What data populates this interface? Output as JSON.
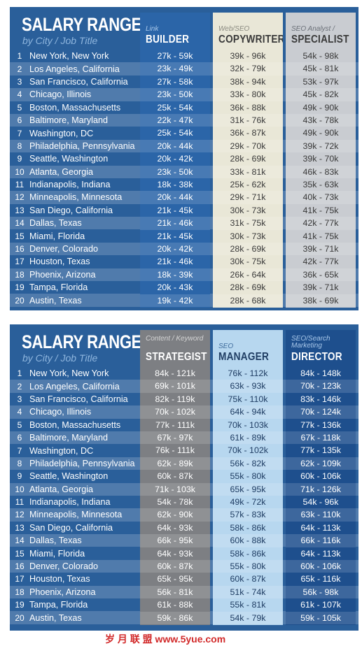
{
  "cities": [
    "New York, New York",
    "Los Angeles, California",
    "San Francisco, California",
    "Chicago, Illinois",
    "Boston, Massachusetts",
    "Baltimore, Maryland",
    "Washington, DC",
    "Philadelphia, Pennsylvania",
    "Seattle, Washington",
    "Atlanta, Georgia",
    "Indianapolis, Indiana",
    "Minneapolis, Minnesota",
    "San Diego, California",
    "Dallas, Texas",
    "Miami, Florida",
    "Denver, Colorado",
    "Houston, Texas",
    "Phoenix, Arizona",
    "Tampa, Florida",
    "Austin, Texas"
  ],
  "panels": [
    {
      "title": "SALARY RANGES",
      "subtitle": "by City / Job Title",
      "columns": [
        {
          "small": "Link",
          "big": "BUILDER",
          "bg": "#2b65a8",
          "text": "#ffffff",
          "smalltext": "#a9c8ea",
          "values": [
            "27k - 59k",
            "23k - 49k",
            "27k - 58k",
            "23k - 50k",
            "25k - 54k",
            "22k - 47k",
            "25k - 54k",
            "20k - 44k",
            "20k - 42k",
            "23k - 50k",
            "18k - 38k",
            "20k - 44k",
            "21k - 45k",
            "21k - 46k",
            "21k - 45k",
            "20k - 42k",
            "21k - 46k",
            "18k - 39k",
            "20k - 43k",
            "19k - 42k"
          ]
        },
        {
          "small": "Web/SEO",
          "big": "COPYWRITER",
          "bg": "#e9e7d7",
          "text": "#3a3a3a",
          "smalltext": "#8a8a80",
          "values": [
            "39k - 96k",
            "32k - 79k",
            "38k - 94k",
            "33k - 80k",
            "36k - 88k",
            "31k - 76k",
            "36k - 87k",
            "29k - 70k",
            "28k - 69k",
            "33k - 81k",
            "25k - 62k",
            "29k - 71k",
            "30k - 73k",
            "31k - 75k",
            "30k - 73k",
            "28k - 69k",
            "30k - 75k",
            "26k - 64k",
            "28k - 69k",
            "28k - 68k"
          ]
        },
        {
          "small": "SEO Analyst /",
          "big": "SPECIALIST",
          "bg": "#c9ccd1",
          "text": "#3a3a3a",
          "smalltext": "#6b7078",
          "values": [
            "54k - 98k",
            "45k - 81k",
            "53k - 97k",
            "45k - 82k",
            "49k - 90k",
            "43k - 78k",
            "49k - 90k",
            "39k - 72k",
            "39k - 70k",
            "46k - 83k",
            "35k - 63k",
            "40k - 73k",
            "41k - 75k",
            "42k - 77k",
            "41k - 75k",
            "39k - 71k",
            "42k - 77k",
            "36k - 65k",
            "39k - 71k",
            "38k - 69k"
          ]
        }
      ]
    },
    {
      "title": "SALARY RANGES",
      "subtitle": "by City / Job Title",
      "columns": [
        {
          "small": "Content / Keyword",
          "big": "STRATEGIST",
          "bg": "#7d7f83",
          "text": "#ffffff",
          "smalltext": "#d6d6d6",
          "values": [
            "84k - 121k",
            "69k - 101k",
            "82k - 119k",
            "70k - 102k",
            "77k - 111k",
            "67k - 97k",
            "76k - 111k",
            "62k - 89k",
            "60k - 87k",
            "71k - 103k",
            "54k - 78k",
            "62k - 90k",
            "64k - 93k",
            "66k - 95k",
            "64k - 93k",
            "60k - 87k",
            "65k - 95k",
            "56k - 81k",
            "61k - 88k",
            "59k - 86k"
          ]
        },
        {
          "small": "SEO",
          "big": "MANAGER",
          "bg": "#b7d7ef",
          "text": "#1f3d63",
          "smalltext": "#3f6c9c",
          "values": [
            "76k - 112k",
            "63k - 93k",
            "75k - 110k",
            "64k - 94k",
            "70k - 103k",
            "61k - 89k",
            "70k - 102k",
            "56k - 82k",
            "55k - 80k",
            "65k - 95k",
            "49k - 72k",
            "57k - 83k",
            "58k - 86k",
            "60k - 88k",
            "58k - 86k",
            "55k - 80k",
            "60k - 87k",
            "51k - 74k",
            "55k - 81k",
            "54k - 79k"
          ]
        },
        {
          "small": "SEO/Search Marketing",
          "big": "DIRECTOR",
          "bg": "#1e4f8d",
          "text": "#ffffff",
          "smalltext": "#a9c8ea",
          "values": [
            "84k - 148k",
            "70k - 123k",
            "83k - 146k",
            "70k - 124k",
            "77k - 136k",
            "67k - 118k",
            "77k - 135k",
            "62k - 109k",
            "60k - 106k",
            "71k - 126k",
            "54k - 96k",
            "63k - 110k",
            "64k - 113k",
            "66k - 116k",
            "64k - 113k",
            "60k - 106k",
            "65k - 116k",
            "56k - 98k",
            "61k - 107k",
            "59k - 105k"
          ]
        }
      ]
    }
  ],
  "watermark": "岁 月 联 盟   www.5yue.com"
}
